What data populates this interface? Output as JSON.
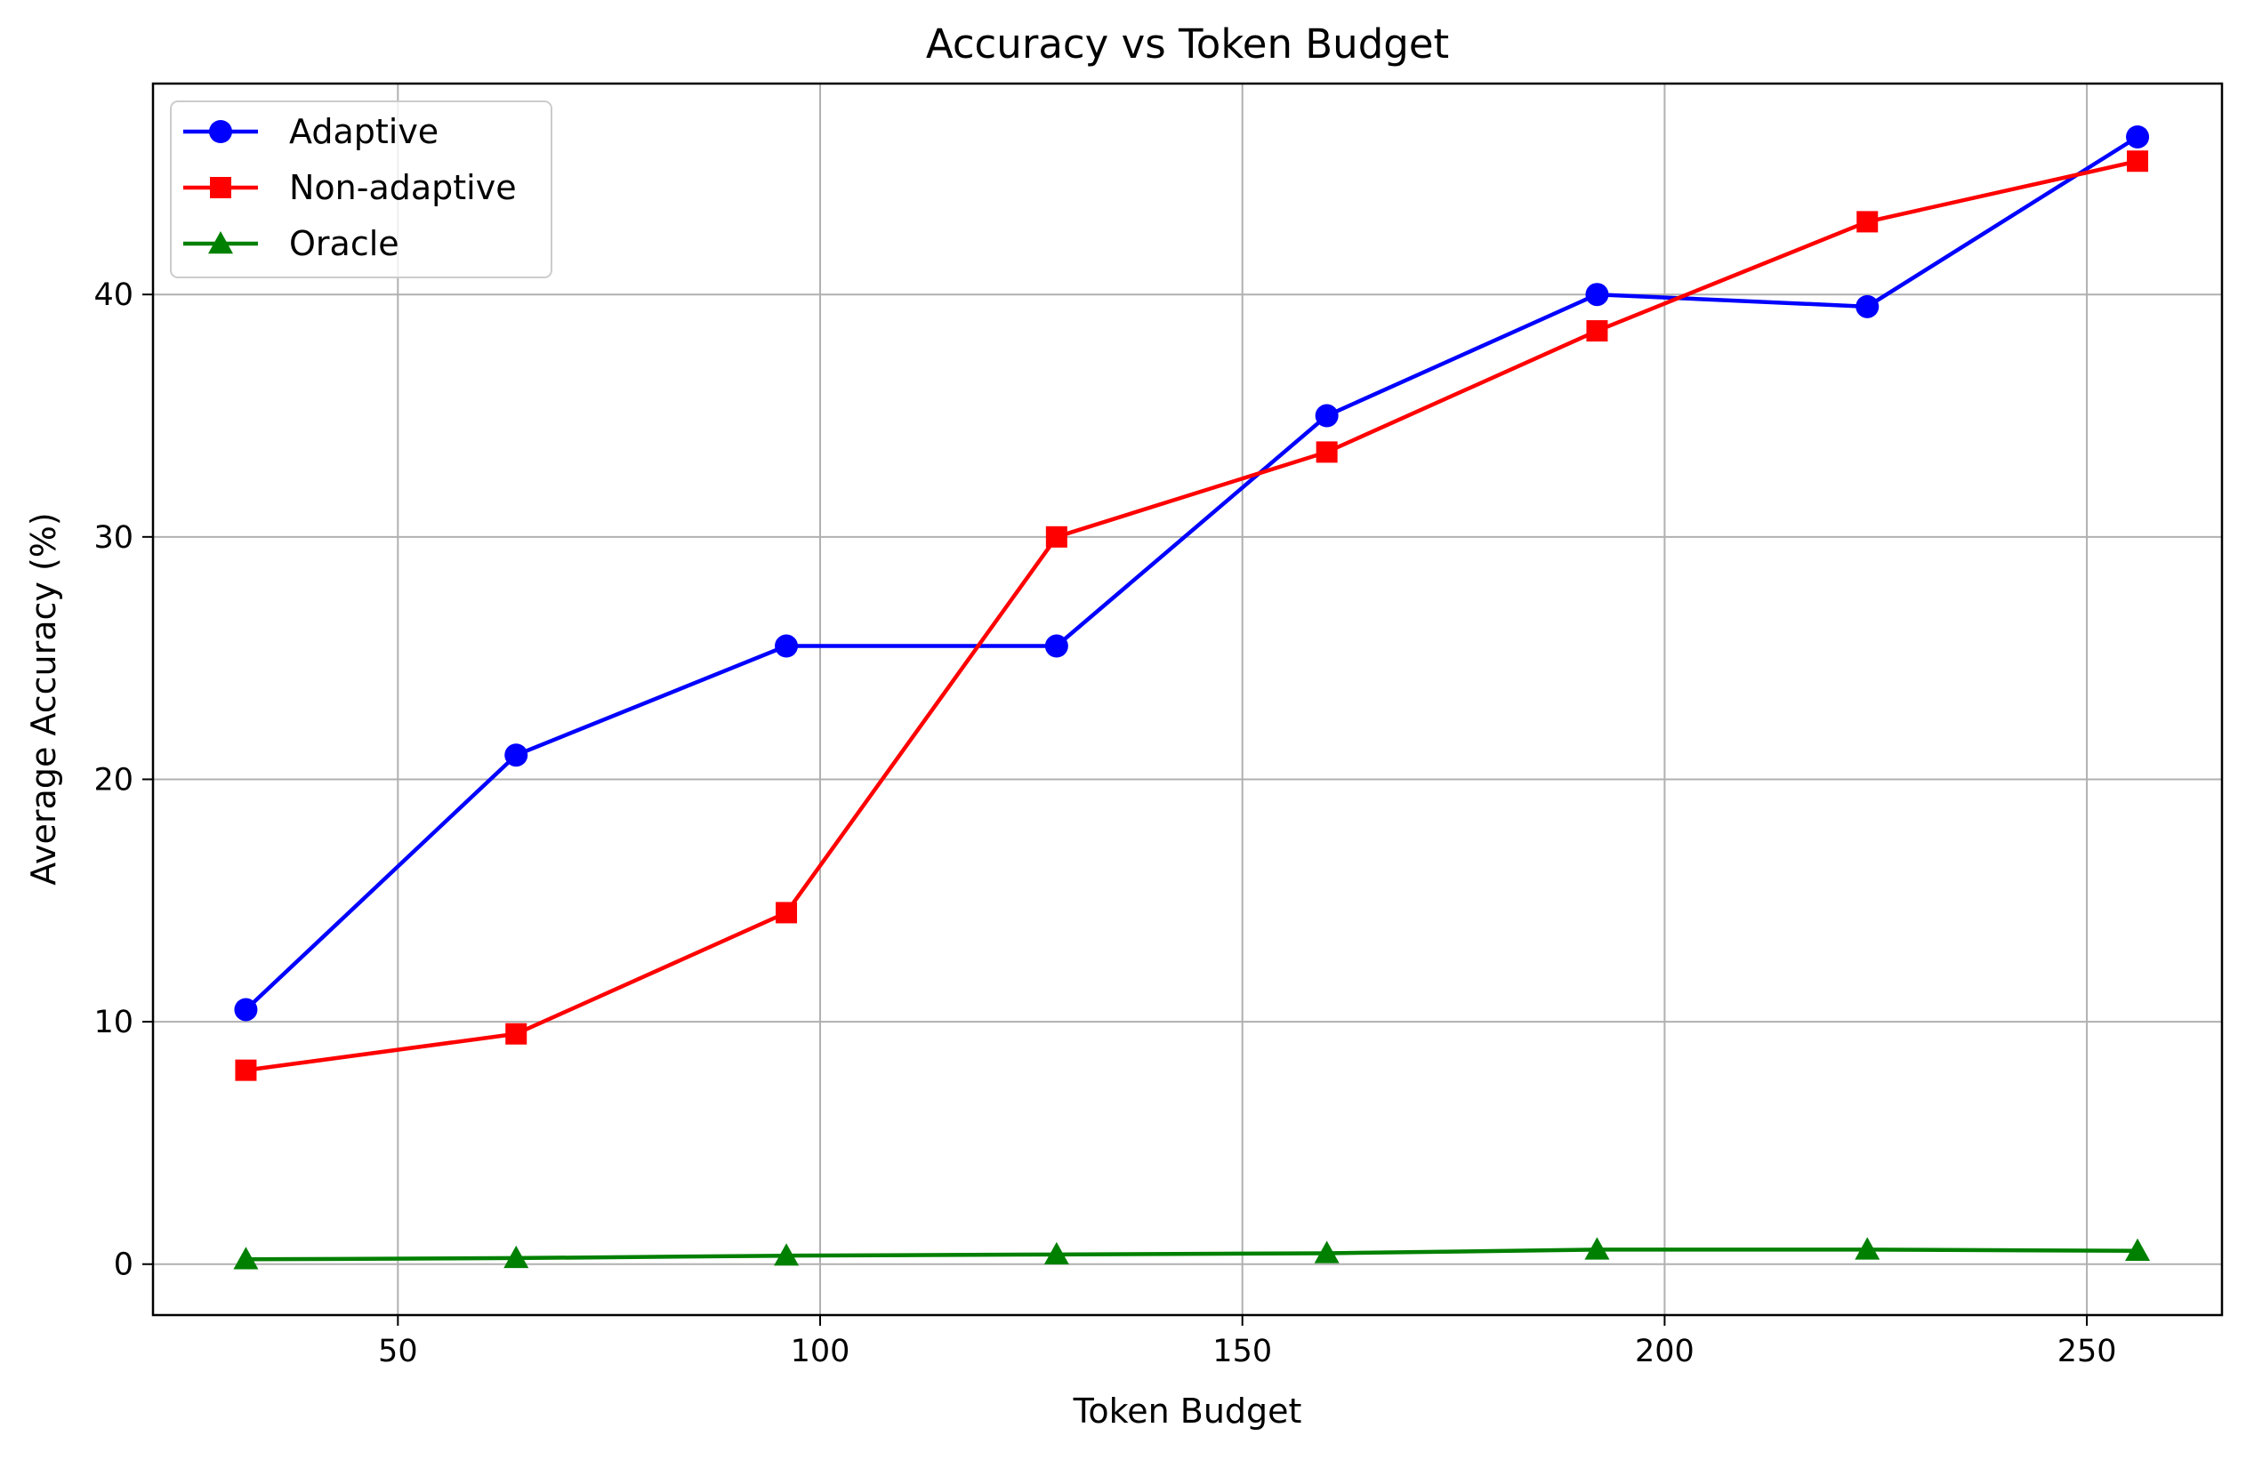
{
  "chart_data": {
    "type": "line",
    "title": "Accuracy vs Token Budget",
    "xlabel": "Token Budget",
    "ylabel": "Average Accuracy (%)",
    "xlim": [
      21,
      266
    ],
    "ylim": [
      -2.1,
      48.7
    ],
    "xticks": [
      50,
      100,
      150,
      200,
      250
    ],
    "yticks": [
      0,
      10,
      20,
      30,
      40
    ],
    "grid": true,
    "legend_position": "top-left",
    "x": [
      32,
      64,
      96,
      128,
      160,
      192,
      224,
      256
    ],
    "series": [
      {
        "name": "Adaptive",
        "color": "#0000ff",
        "marker": "circle",
        "values": [
          10.5,
          21.0,
          25.5,
          25.5,
          35.0,
          40.0,
          39.5,
          46.5
        ]
      },
      {
        "name": "Non-adaptive",
        "color": "#ff0000",
        "marker": "square",
        "values": [
          8.0,
          9.5,
          14.5,
          30.0,
          33.5,
          38.5,
          43.0,
          45.5
        ]
      },
      {
        "name": "Oracle",
        "color": "#008000",
        "marker": "triangle",
        "values": [
          0.2,
          0.25,
          0.35,
          0.4,
          0.45,
          0.6,
          0.6,
          0.55
        ]
      }
    ]
  }
}
